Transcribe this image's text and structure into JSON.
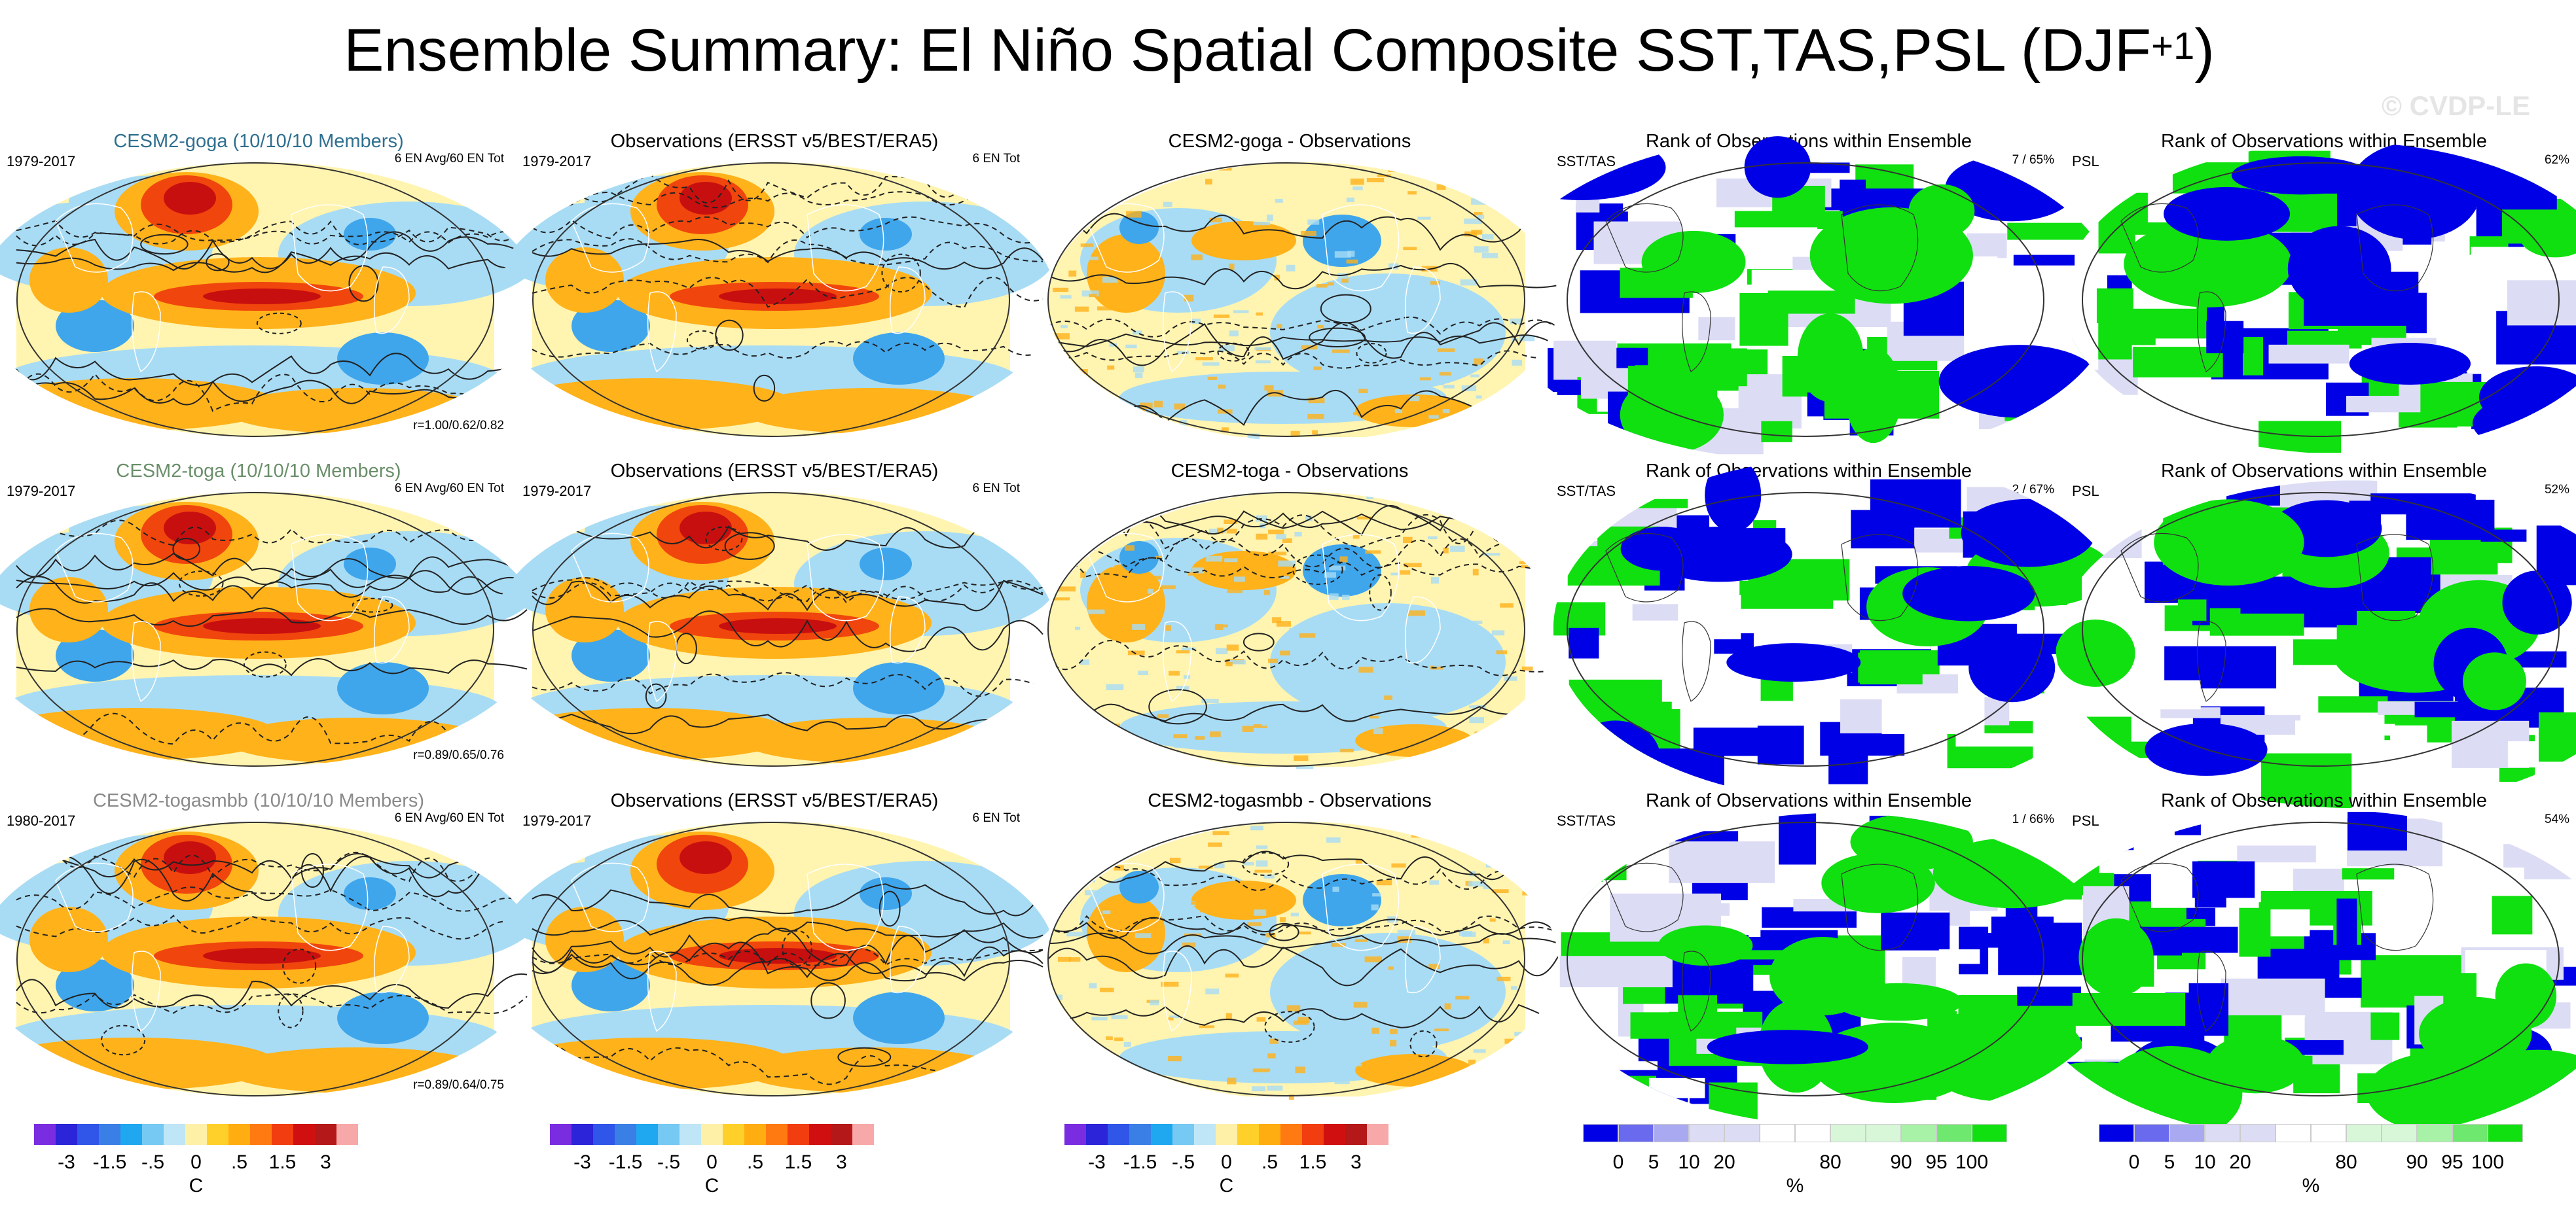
{
  "figure": {
    "title_main": "Ensemble Summary: El Niño Spatial Composite SST,TAS,PSL (DJF",
    "title_sup": "+1",
    "title_close": ")",
    "copyright": "© CVDP-LE"
  },
  "rows": [
    {
      "model": {
        "title": "CESM2-goga (10/10/10 Members)",
        "title_color": "#2f6f8f",
        "period": "1979-2017",
        "count": "6 EN Avg/60 EN Tot",
        "corr": "r=1.00/0.62/0.82"
      },
      "obs": {
        "title": "Observations (ERSST v5/BEST/ERA5)",
        "period": "1979-2017",
        "count": "6 EN Tot"
      },
      "diff": {
        "title": "CESM2-goga - Observations"
      },
      "rank1": {
        "title": "Rank of Observations within Ensemble",
        "label": "SST/TAS",
        "value": "7 /  65%"
      },
      "rank2": {
        "title": "Rank of Observations within Ensemble",
        "label": "PSL",
        "value": "62%"
      }
    },
    {
      "model": {
        "title": "CESM2-toga (10/10/10 Members)",
        "title_color": "#6a8f6a",
        "period": "1979-2017",
        "count": "6 EN Avg/60 EN Tot",
        "corr": "r=0.89/0.65/0.76"
      },
      "obs": {
        "title": "Observations (ERSST v5/BEST/ERA5)",
        "period": "1979-2017",
        "count": "6 EN Tot"
      },
      "diff": {
        "title": "CESM2-toga - Observations"
      },
      "rank1": {
        "title": "Rank of Observations within Ensemble",
        "label": "SST/TAS",
        "value": "2 /  67%"
      },
      "rank2": {
        "title": "Rank of Observations within Ensemble",
        "label": "PSL",
        "value": "52%"
      }
    },
    {
      "model": {
        "title": "CESM2-togasmbb (10/10/10 Members)",
        "title_color": "#8a8a8a",
        "period": "1980-2017",
        "count": "6 EN Avg/60 EN Tot",
        "corr": "r=0.89/0.64/0.75"
      },
      "obs": {
        "title": "Observations (ERSST v5/BEST/ERA5)",
        "period": "1979-2017",
        "count": "6 EN Tot"
      },
      "diff": {
        "title": "CESM2-togasmbb - Observations"
      },
      "rank1": {
        "title": "Rank of Observations within Ensemble",
        "label": "SST/TAS",
        "value": "1 /  66%"
      },
      "rank2": {
        "title": "Rank of Observations within Ensemble",
        "label": "PSL",
        "value": "54%"
      }
    }
  ],
  "colorbar_anomaly": {
    "colors": [
      "#7a2de0",
      "#2b24d8",
      "#2f56e8",
      "#3a7fe6",
      "#1fa8f0",
      "#76c9f2",
      "#bfe6f6",
      "#fff0a8",
      "#ffd02a",
      "#ffad10",
      "#ff7a10",
      "#f23d10",
      "#d01010",
      "#b51818",
      "#f7a8a8"
    ],
    "ticks": [
      "-3",
      "-1.5",
      "-.5",
      "0",
      ".5",
      "1.5",
      "3"
    ],
    "unit": "C"
  },
  "colorbar_rank": {
    "colors": [
      "#0000e6",
      "#6a6aef",
      "#a9a9f2",
      "#dcdcf5",
      "#dcdcf5",
      "#ffffff",
      "#ffffff",
      "#d8f7d8",
      "#d8f7d8",
      "#a8f2a8",
      "#6ee86e",
      "#10e010"
    ],
    "ticks": [
      "0",
      "5",
      "10",
      "20",
      "80",
      "90",
      "95",
      "100"
    ],
    "unit": "%"
  },
  "palette": {
    "ocean_neutral": "#fff4b0",
    "cool_light": "#a8dcf5",
    "cool": "#3fa6ec",
    "warm": "#ffb21a",
    "warm_strong": "#f0450d",
    "hot": "#c80f0f",
    "rank_low": "#0000e6",
    "rank_high": "#10e010",
    "rank_mid": "#ffffff",
    "rank_pale": "#dcdcf5"
  }
}
